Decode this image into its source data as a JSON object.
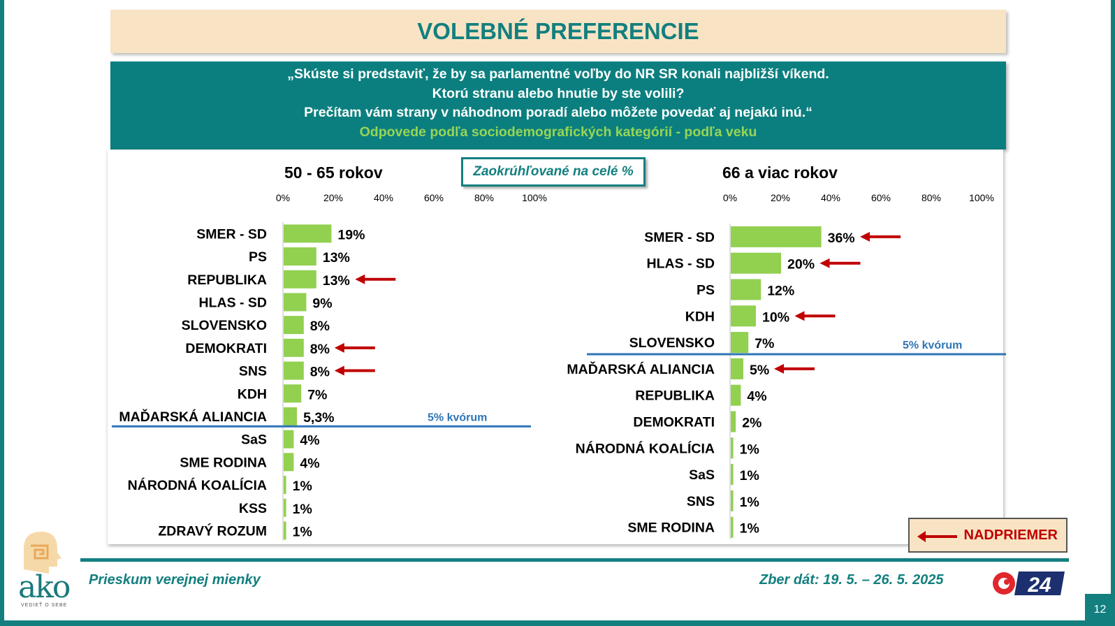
{
  "title": "VOLEBNÉ PREFERENCIE",
  "question": {
    "line1": "„Skúste si predstaviť, že by sa parlamentné voľby do NR SR konali najbližší víkend.",
    "line2": "Ktorú stranu alebo hnutie by ste volili?",
    "line3": "Prečítam vám strany v náhodnom poradí alebo môžete povedať aj nejakú inú.“",
    "subtitle": "Odpovede podľa sociodemografických kategórií - podľa veku"
  },
  "note": "Zaokrúhľované na celé %",
  "colors": {
    "teal": "#137f7f",
    "bar": "#92d050",
    "arrow": "#c00000",
    "threshold": "#2e75b6",
    "beige": "#f8e4c4"
  },
  "chart_data": [
    {
      "type": "bar",
      "orientation": "horizontal",
      "title": "50 - 65 rokov",
      "axis_ticks": [
        "0%",
        "20%",
        "40%",
        "60%",
        "80%",
        "100%"
      ],
      "xlim": [
        0,
        100
      ],
      "categories": [
        "SMER - SD",
        "PS",
        "REPUBLIKA",
        "HLAS - SD",
        "SLOVENSKO",
        "DEMOKRATI",
        "SNS",
        "KDH",
        "MAĎARSKÁ ALIANCIA",
        "SaS",
        "SME RODINA",
        "NÁRODNÁ KOALÍCIA",
        "KSS",
        "ZDRAVÝ ROZUM"
      ],
      "values": [
        19,
        13,
        13,
        9,
        8,
        8,
        8,
        7,
        5.3,
        4,
        4,
        1,
        1,
        1
      ],
      "labels": [
        "19%",
        "13%",
        "13%",
        "9%",
        "8%",
        "8%",
        "8%",
        "7%",
        "5,3%",
        "4%",
        "4%",
        "1%",
        "1%",
        "1%"
      ],
      "above_average": [
        "REPUBLIKA",
        "DEMOKRATI",
        "SNS"
      ],
      "threshold": {
        "value": 5,
        "label": "5% kvórum",
        "after_index": 8
      }
    },
    {
      "type": "bar",
      "orientation": "horizontal",
      "title": "66 a viac rokov",
      "axis_ticks": [
        "0%",
        "20%",
        "40%",
        "60%",
        "80%",
        "100%"
      ],
      "xlim": [
        0,
        100
      ],
      "categories": [
        "SMER - SD",
        "HLAS - SD",
        "PS",
        "KDH",
        "SLOVENSKO",
        "MAĎARSKÁ ALIANCIA",
        "REPUBLIKA",
        "DEMOKRATI",
        "NÁRODNÁ KOALÍCIA",
        "SaS",
        "SNS",
        "SME RODINA"
      ],
      "values": [
        36,
        20,
        12,
        10,
        7,
        5,
        4,
        2,
        1,
        1,
        1,
        1
      ],
      "labels": [
        "36%",
        "20%",
        "12%",
        "10%",
        "7%",
        "5%",
        "4%",
        "2%",
        "1%",
        "1%",
        "1%",
        "1%"
      ],
      "above_average": [
        "SMER - SD",
        "HLAS - SD",
        "KDH",
        "MAĎARSKÁ ALIANCIA"
      ],
      "threshold": {
        "value": 5,
        "label": "5% kvórum",
        "after_index": 4
      }
    }
  ],
  "legend": {
    "label": "NADPRIEMER"
  },
  "footer": {
    "left": "Prieskum verejnej mienky",
    "right": "Zber dát: 19. 5. – 26. 5. 2025",
    "page_number": "12"
  },
  "logos": {
    "ako_word": "ako",
    "ako_tagline": "VEDIEŤ O SEBE",
    "tv_number": "24"
  }
}
